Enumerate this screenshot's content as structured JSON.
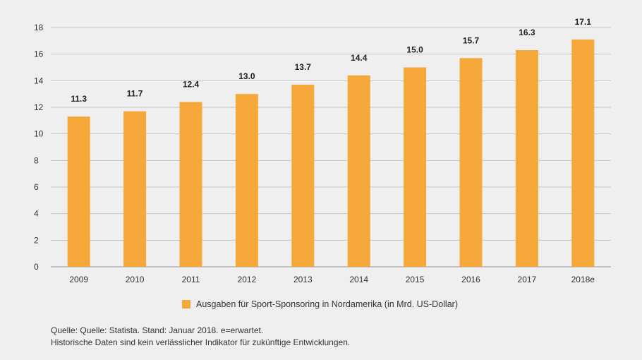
{
  "chart_data": {
    "type": "bar",
    "categories": [
      "2009",
      "2010",
      "2011",
      "2012",
      "2013",
      "2014",
      "2015",
      "2016",
      "2017",
      "2018e"
    ],
    "series": [
      {
        "name": "Ausgaben für Sport-Sponsoring in Nordamerika (in Mrd. US-Dollar)",
        "values": [
          11.3,
          11.7,
          12.4,
          13.0,
          13.7,
          14.4,
          15.0,
          15.7,
          16.3,
          17.1
        ],
        "labels": [
          "11.3",
          "11.7",
          "12.4",
          "13.0",
          "13.7",
          "14.4",
          "15.0",
          "15.7",
          "16.3",
          "17.1"
        ]
      }
    ],
    "ylim": [
      0,
      18
    ],
    "yticks": [
      0,
      2,
      4,
      6,
      8,
      10,
      12,
      14,
      16,
      18
    ],
    "xlabel": "",
    "ylabel": "",
    "grid": true,
    "legend": "bottom-center"
  },
  "colors": {
    "bar": "#f6a83b",
    "grid": "#c6c6c6",
    "background": "#efefef"
  },
  "legend": {
    "label": "Ausgaben für Sport-Sponsoring in Nordamerika (in Mrd. US-Dollar)"
  },
  "source": {
    "line1": "Quelle: Quelle: Statista. Stand: Januar 2018. e=erwartet.",
    "line2": "Historische Daten sind kein verlässlicher Indikator für zukünftige Entwicklungen."
  }
}
